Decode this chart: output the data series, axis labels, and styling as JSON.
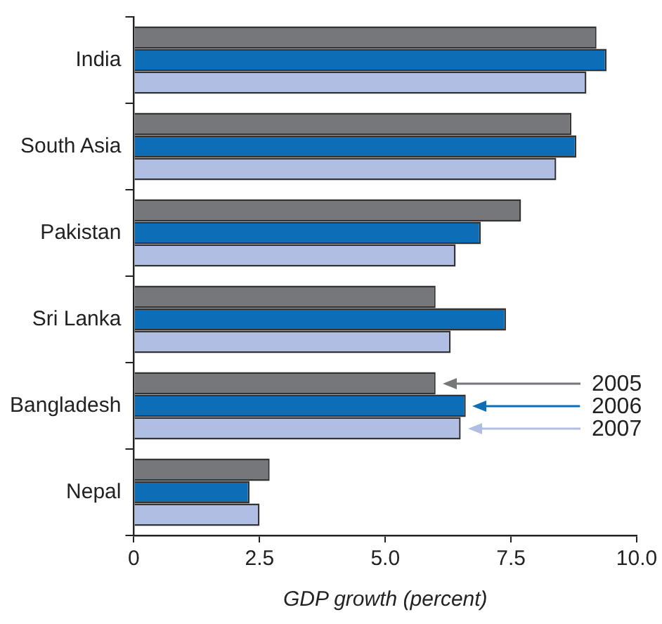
{
  "chart_data": {
    "type": "bar",
    "orientation": "horizontal",
    "xlabel": "GDP growth (percent)",
    "categories": [
      "India",
      "South Asia",
      "Pakistan",
      "Sri Lanka",
      "Bangladesh",
      "Nepal"
    ],
    "series": [
      {
        "name": "2005",
        "color": "#76777b",
        "values": [
          9.2,
          8.7,
          7.7,
          6.0,
          6.0,
          2.7
        ]
      },
      {
        "name": "2006",
        "color": "#0d6db7",
        "values": [
          9.4,
          8.8,
          6.9,
          7.4,
          6.6,
          2.3
        ]
      },
      {
        "name": "2007",
        "color": "#b0bee3",
        "values": [
          9.0,
          8.4,
          6.4,
          6.3,
          6.5,
          2.5
        ]
      }
    ],
    "xlim": [
      0,
      10
    ],
    "xticks": [
      0,
      2.5,
      {
        "value": 5,
        "label": "5.0"
      },
      7.5,
      {
        "value": 10,
        "label": "10.0"
      }
    ],
    "grid": false,
    "legend": "right"
  }
}
